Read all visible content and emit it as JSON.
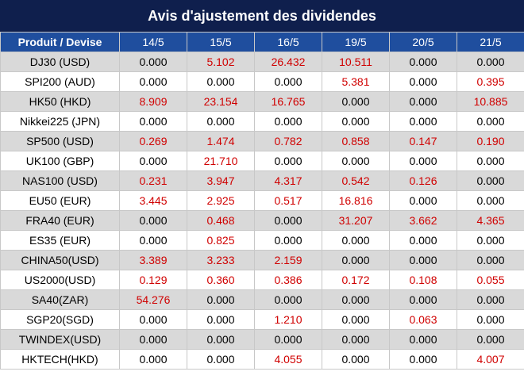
{
  "title": "Avis d'ajustement des dividendes",
  "headers": [
    "Produit / Devise",
    "14/5",
    "15/5",
    "16/5",
    "19/5",
    "20/5",
    "21/5"
  ],
  "rows": [
    {
      "product": "DJ30 (USD)",
      "values": [
        "0.000",
        "5.102",
        "26.432",
        "10.511",
        "0.000",
        "0.000"
      ]
    },
    {
      "product": "SPI200 (AUD)",
      "values": [
        "0.000",
        "0.000",
        "0.000",
        "5.381",
        "0.000",
        "0.395"
      ]
    },
    {
      "product": "HK50 (HKD)",
      "values": [
        "8.909",
        "23.154",
        "16.765",
        "0.000",
        "0.000",
        "10.885"
      ]
    },
    {
      "product": "Nikkei225 (JPN)",
      "values": [
        "0.000",
        "0.000",
        "0.000",
        "0.000",
        "0.000",
        "0.000"
      ]
    },
    {
      "product": "SP500 (USD)",
      "values": [
        "0.269",
        "1.474",
        "0.782",
        "0.858",
        "0.147",
        "0.190"
      ]
    },
    {
      "product": "UK100 (GBP)",
      "values": [
        "0.000",
        "21.710",
        "0.000",
        "0.000",
        "0.000",
        "0.000"
      ]
    },
    {
      "product": "NAS100 (USD)",
      "values": [
        "0.231",
        "3.947",
        "4.317",
        "0.542",
        "0.126",
        "0.000"
      ]
    },
    {
      "product": "EU50 (EUR)",
      "values": [
        "3.445",
        "2.925",
        "0.517",
        "16.816",
        "0.000",
        "0.000"
      ]
    },
    {
      "product": "FRA40 (EUR)",
      "values": [
        "0.000",
        "0.468",
        "0.000",
        "31.207",
        "3.662",
        "4.365"
      ]
    },
    {
      "product": "ES35 (EUR)",
      "values": [
        "0.000",
        "0.825",
        "0.000",
        "0.000",
        "0.000",
        "0.000"
      ]
    },
    {
      "product": "CHINA50(USD)",
      "values": [
        "3.389",
        "3.233",
        "2.159",
        "0.000",
        "0.000",
        "0.000"
      ]
    },
    {
      "product": "US2000(USD)",
      "values": [
        "0.129",
        "0.360",
        "0.386",
        "0.172",
        "0.108",
        "0.055"
      ]
    },
    {
      "product": "SA40(ZAR)",
      "values": [
        "54.276",
        "0.000",
        "0.000",
        "0.000",
        "0.000",
        "0.000"
      ]
    },
    {
      "product": "SGP20(SGD)",
      "values": [
        "0.000",
        "0.000",
        "1.210",
        "0.000",
        "0.063",
        "0.000"
      ]
    },
    {
      "product": "TWINDEX(USD)",
      "values": [
        "0.000",
        "0.000",
        "0.000",
        "0.000",
        "0.000",
        "0.000"
      ]
    },
    {
      "product": "HKTECH(HKD)",
      "values": [
        "0.000",
        "0.000",
        "4.055",
        "0.000",
        "0.000",
        "4.007"
      ]
    }
  ],
  "colors": {
    "title_bg": "#0f1f4d",
    "header_bg": "#1f4e9e",
    "alt_row_bg": "#d9d9d9",
    "positive_value": "#d00000",
    "zero_value": "#000000"
  }
}
